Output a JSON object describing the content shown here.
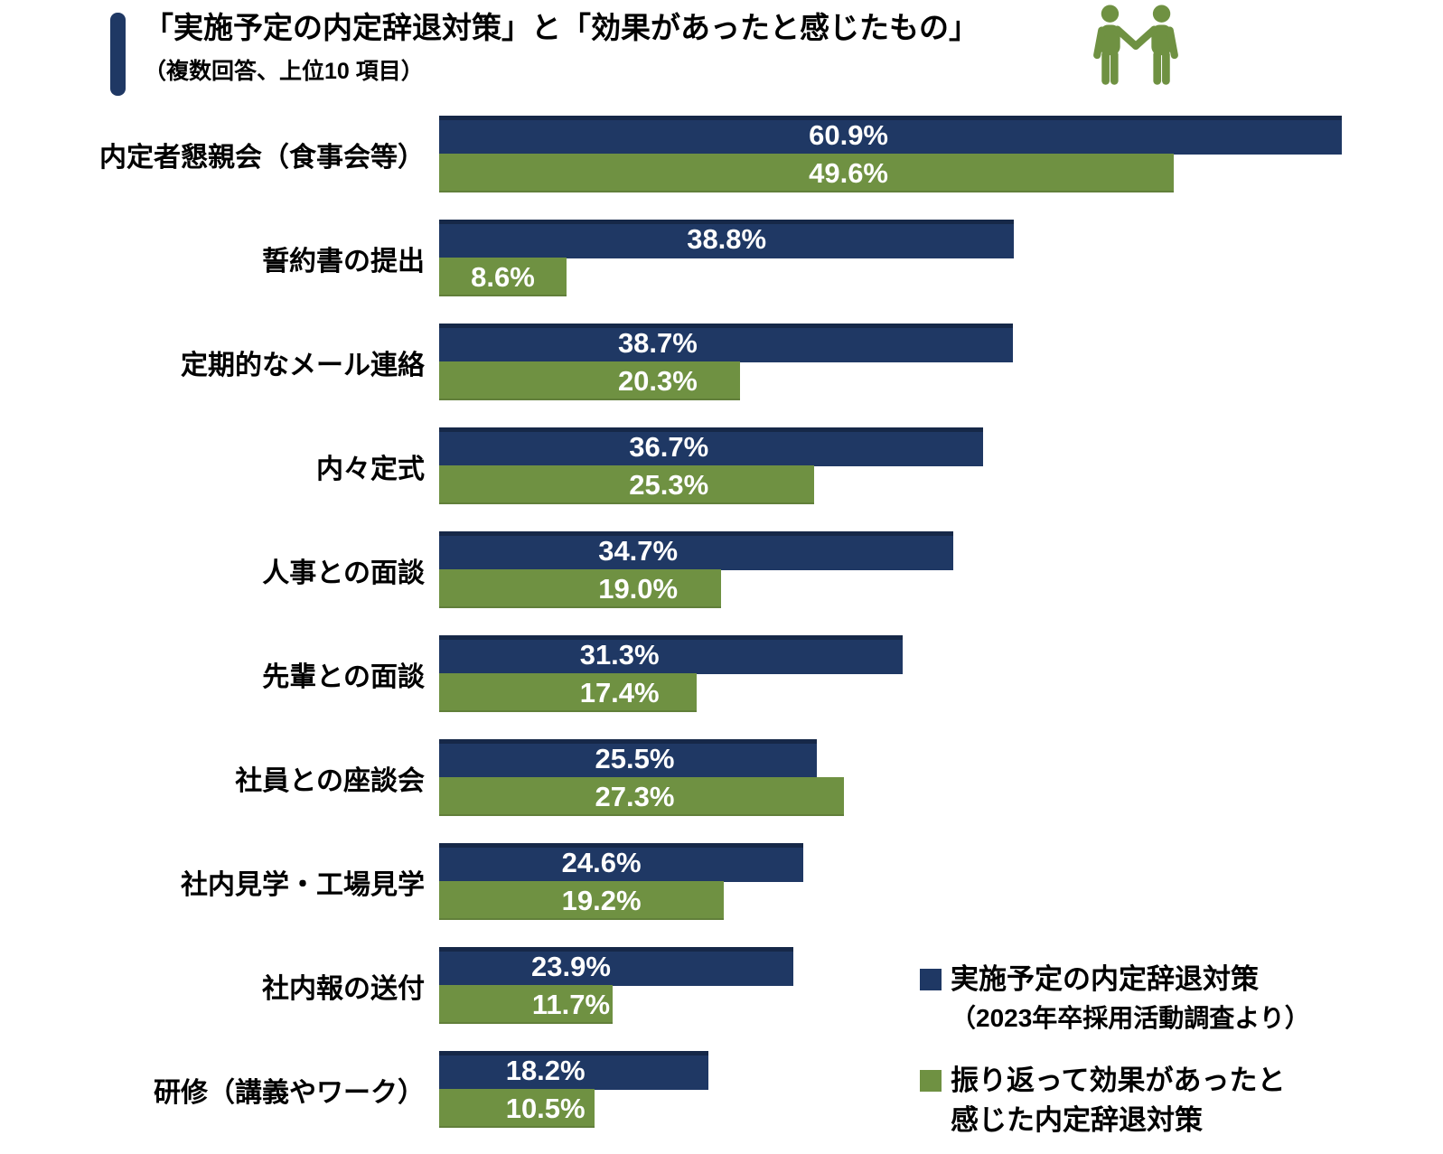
{
  "header": {
    "title": "「実施予定の内定辞退対策」と「効果があったと感じたもの」",
    "subtitle": "（複数回答、上位10 項目）"
  },
  "colors": {
    "navy": "#1f3864",
    "green": "#6f9142"
  },
  "chart_data": {
    "type": "bar",
    "orientation": "horizontal",
    "unit": "%",
    "value_labels": "inside, one decimal + %",
    "axis_visible": false,
    "xlim": [
      0,
      63
    ],
    "categories": [
      "内定者懇親会（食事会等）",
      "誓約書の提出",
      "定期的なメール連絡",
      "内々定式",
      "人事との面談",
      "先輩との面談",
      "社員との座談会",
      "社内見学・工場見学",
      "社内報の送付",
      "研修（講義やワーク）"
    ],
    "series": [
      {
        "name": "実施予定の内定辞退対策（2023年卒採用活動調査より）",
        "color": "#1f3864",
        "values": [
          60.9,
          38.8,
          38.7,
          36.7,
          34.7,
          31.3,
          25.5,
          24.6,
          23.9,
          18.2
        ]
      },
      {
        "name": "振り返って効果があったと感じた内定辞退対策",
        "color": "#6f9142",
        "values": [
          49.6,
          8.6,
          20.3,
          25.3,
          19.0,
          17.4,
          27.3,
          19.2,
          11.7,
          10.5
        ]
      }
    ]
  },
  "legend": {
    "items": [
      {
        "color": "#1f3864",
        "lines": [
          "実施予定の内定辞退対策",
          "（2023年卒採用活動調査より）"
        ]
      },
      {
        "color": "#6f9142",
        "lines": [
          "振り返って効果があったと",
          "感じた内定辞退対策"
        ]
      }
    ]
  }
}
